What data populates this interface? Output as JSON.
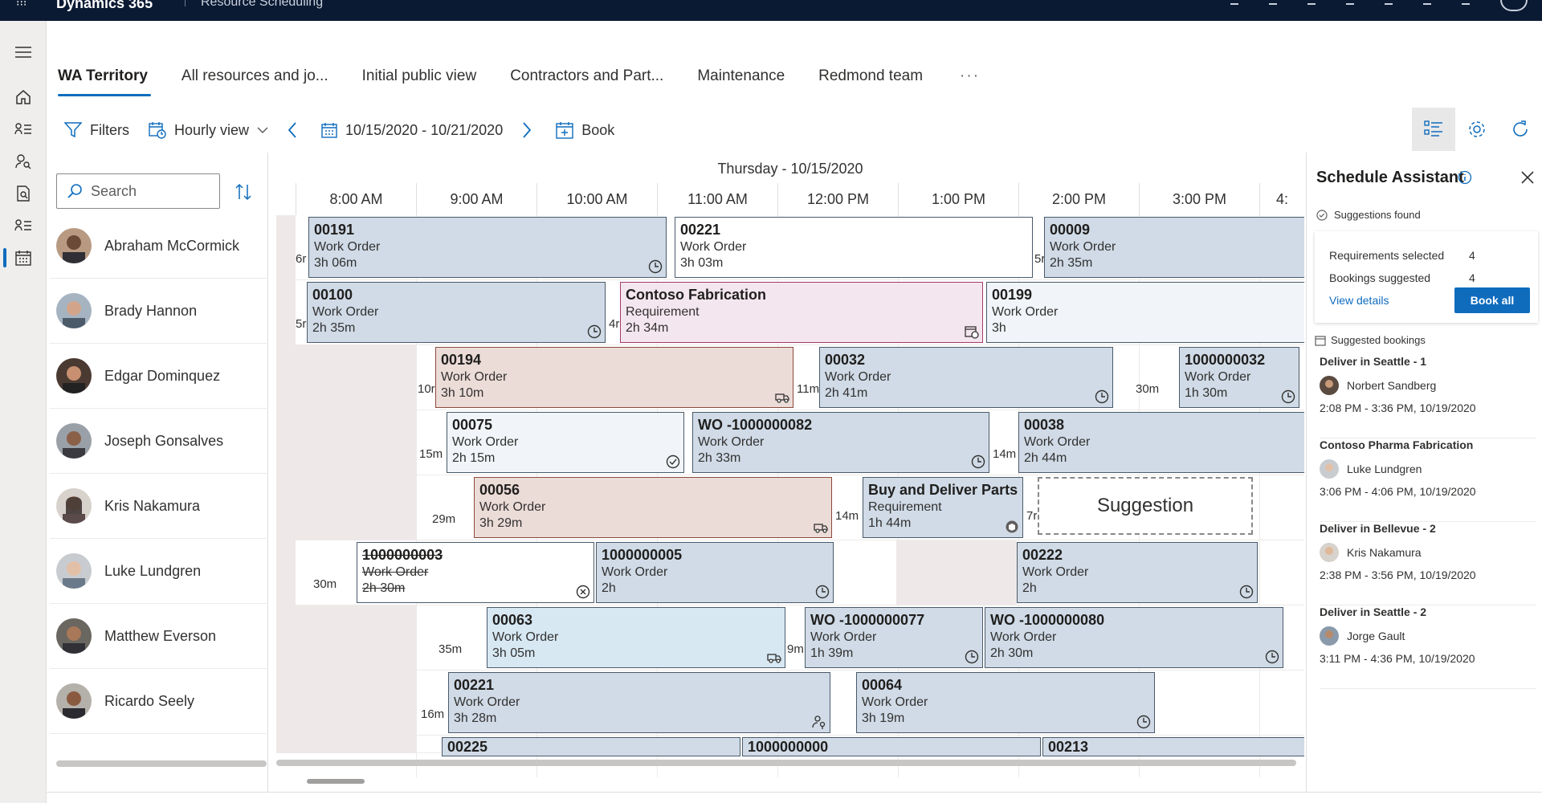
{
  "header": {
    "brand": "Dynamics 365",
    "app": "Resource Scheduling"
  },
  "tabs": [
    {
      "label": "WA Territory"
    },
    {
      "label": "All resources and jo..."
    },
    {
      "label": "Initial public view"
    },
    {
      "label": "Contractors and Part..."
    },
    {
      "label": "Maintenance"
    },
    {
      "label": "Redmond team"
    }
  ],
  "tabs_more": "···",
  "toolbar": {
    "filters": "Filters",
    "view": "Hourly view",
    "date_range": "10/15/2020 - 10/21/2020",
    "book": "Book"
  },
  "search": {
    "placeholder": "Search"
  },
  "board": {
    "day": "Thursday - 10/15/2020",
    "hours": [
      "8:00 AM",
      "9:00 AM",
      "10:00 AM",
      "11:00 AM",
      "12:00 PM",
      "1:00 PM",
      "2:00 PM",
      "3:00 PM",
      "4:"
    ]
  },
  "resources": [
    {
      "name": "Abraham McCormick"
    },
    {
      "name": "Brady Hannon"
    },
    {
      "name": "Edgar Dominquez"
    },
    {
      "name": "Joseph Gonsalves"
    },
    {
      "name": "Kris Nakamura"
    },
    {
      "name": "Luke Lundgren"
    },
    {
      "name": "Matthew Everson"
    },
    {
      "name": "Ricardo Seely"
    }
  ],
  "bookings": {
    "r0": [
      {
        "id": "00191",
        "type": "Work Order",
        "dur": "3h 06m"
      },
      {
        "id": "00221",
        "type": "Work Order",
        "dur": "3h 03m"
      },
      {
        "id": "00009",
        "type": "Work Order",
        "dur": "2h 35m"
      }
    ],
    "r1": [
      {
        "id": "00100",
        "type": "Work Order",
        "dur": "2h 35m"
      },
      {
        "id": "Contoso Fabrication",
        "type": "Requirement",
        "dur": "2h 34m"
      },
      {
        "id": "00199",
        "type": "Work Order",
        "dur": "3h"
      }
    ],
    "r2": [
      {
        "id": "00194",
        "type": "Work Order",
        "dur": "3h 10m"
      },
      {
        "id": "00032",
        "type": "Work Order",
        "dur": "2h 41m"
      },
      {
        "id": "1000000032",
        "type": "Work Order",
        "dur": "1h 30m"
      }
    ],
    "r3": [
      {
        "id": "00075",
        "type": "Work Order",
        "dur": "2h 15m"
      },
      {
        "id": "WO -1000000082",
        "type": "Work Order",
        "dur": "2h 33m"
      },
      {
        "id": "00038",
        "type": "Work Order",
        "dur": "2h 44m"
      }
    ],
    "r4": [
      {
        "id": "00056",
        "type": "Work Order",
        "dur": "3h 29m"
      },
      {
        "id": "Buy and Deliver Parts",
        "type": "Requirement",
        "dur": "1h 44m"
      }
    ],
    "r5": [
      {
        "id": "1000000003",
        "type": "Work Order",
        "dur": "2h 30m"
      },
      {
        "id": "1000000005",
        "type": "Work Order",
        "dur": "2h"
      },
      {
        "id": "00222",
        "type": "Work Order",
        "dur": "2h"
      }
    ],
    "r6": [
      {
        "id": "00063",
        "type": "Work Order",
        "dur": "3h 05m"
      },
      {
        "id": "WO -1000000077",
        "type": "Work Order",
        "dur": "1h 39m"
      },
      {
        "id": "WO -1000000080",
        "type": "Work Order",
        "dur": "2h 30m"
      }
    ],
    "r7": [
      {
        "id": "00221",
        "type": "Work Order",
        "dur": "3h 28m"
      },
      {
        "id": "00064",
        "type": "Work Order",
        "dur": "3h 19m"
      }
    ],
    "r8": [
      {
        "id": "00225"
      },
      {
        "id": "1000000000"
      },
      {
        "id": "00213"
      }
    ]
  },
  "travel": {
    "t_r0_a": "6r",
    "t_r0_b": "5r",
    "t_r1_a": "5r",
    "t_r1_b": "4r",
    "t_r2_a": "10r",
    "t_r2_b": "11m",
    "t_r2_c": "30m",
    "t_r3_a": "15m",
    "t_r3_b": "14m",
    "t_r4_a": "29m",
    "t_r4_b": "14m",
    "t_r4_c": "7r",
    "t_r5_a": "30m",
    "t_r6_a": "35m",
    "t_r6_b": "9m",
    "t_r7_a": "16m"
  },
  "suggestion_label": "Suggestion",
  "assistant": {
    "title": "Schedule Assistant",
    "found": "Suggestions found",
    "req_label": "Requirements selected",
    "req_value": "4",
    "book_label": "Bookings suggested",
    "book_value": "4",
    "view_details": "View details",
    "book_all": "Book all",
    "suggested_header": "Suggested bookings",
    "items": [
      {
        "title": "Deliver in Seattle - 1",
        "person": "Norbert Sandberg",
        "time": "2:08 PM - 3:36 PM, 10/19/2020"
      },
      {
        "title": "Contoso Pharma Fabrication",
        "person": "Luke Lundgren",
        "time": "3:06 PM - 4:06 PM, 10/19/2020"
      },
      {
        "title": "Deliver in Bellevue - 2",
        "person": "Kris Nakamura",
        "time": "2:38 PM - 3:56 PM, 10/19/2020"
      },
      {
        "title": "Deliver in Seattle - 2",
        "person": "Jorge Gault",
        "time": "3:11 PM - 4:36 PM, 10/19/2020"
      }
    ]
  },
  "colors": {
    "accent": "#0f6cbd",
    "header_bg": "#0b1a33",
    "booking_blue": "#d0dbe7",
    "requirement_pink": "#f4e6ee",
    "booking_rose": "#ecdcd8"
  }
}
